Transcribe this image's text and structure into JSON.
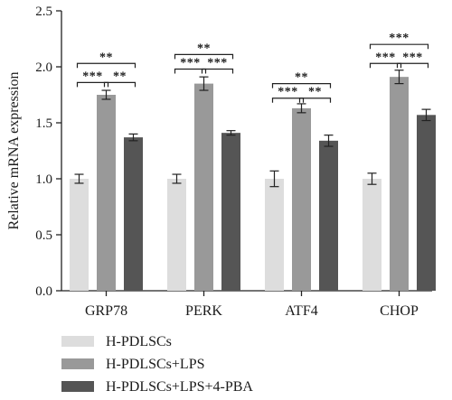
{
  "chart_data": {
    "type": "bar",
    "categories": [
      "GRP78",
      "PERK",
      "ATF4",
      "CHOP"
    ],
    "ylabel": "Relative mRNA expression",
    "xlabel": "",
    "ylim": [
      0,
      2.5
    ],
    "yticks": [
      "0.0",
      "0.5",
      "1.0",
      "1.5",
      "2.0",
      "2.5"
    ],
    "series": [
      {
        "name": "H-PDLSCs",
        "color": "#dddddd",
        "values": [
          1.0,
          1.0,
          1.0,
          1.0
        ],
        "errors": [
          0.04,
          0.04,
          0.07,
          0.05
        ]
      },
      {
        "name": "H-PDLSCs+LPS",
        "color": "#999999",
        "values": [
          1.75,
          1.85,
          1.63,
          1.91
        ],
        "errors": [
          0.04,
          0.06,
          0.04,
          0.06
        ]
      },
      {
        "name": "H-PDLSCs+LPS+4-PBA",
        "color": "#555555",
        "values": [
          1.37,
          1.41,
          1.34,
          1.57
        ],
        "errors": [
          0.03,
          0.02,
          0.05,
          0.05
        ]
      }
    ],
    "significance": [
      {
        "category": 0,
        "from": 0,
        "to": 2,
        "label": "**",
        "y": 2.03
      },
      {
        "category": 0,
        "from": 0,
        "to": 1,
        "label": "***",
        "y": 1.86
      },
      {
        "category": 0,
        "from": 1,
        "to": 2,
        "label": "**",
        "y": 1.86
      },
      {
        "category": 1,
        "from": 0,
        "to": 2,
        "label": "**",
        "y": 2.11
      },
      {
        "category": 1,
        "from": 0,
        "to": 1,
        "label": "***",
        "y": 1.98
      },
      {
        "category": 1,
        "from": 1,
        "to": 2,
        "label": "***",
        "y": 1.98
      },
      {
        "category": 2,
        "from": 0,
        "to": 2,
        "label": "**",
        "y": 1.85
      },
      {
        "category": 2,
        "from": 0,
        "to": 1,
        "label": "***",
        "y": 1.72
      },
      {
        "category": 2,
        "from": 1,
        "to": 2,
        "label": "**",
        "y": 1.72
      },
      {
        "category": 3,
        "from": 0,
        "to": 2,
        "label": "***",
        "y": 2.2
      },
      {
        "category": 3,
        "from": 0,
        "to": 1,
        "label": "***",
        "y": 2.03
      },
      {
        "category": 3,
        "from": 1,
        "to": 2,
        "label": "***",
        "y": 2.03
      }
    ],
    "legend_position": "bottom-left"
  }
}
